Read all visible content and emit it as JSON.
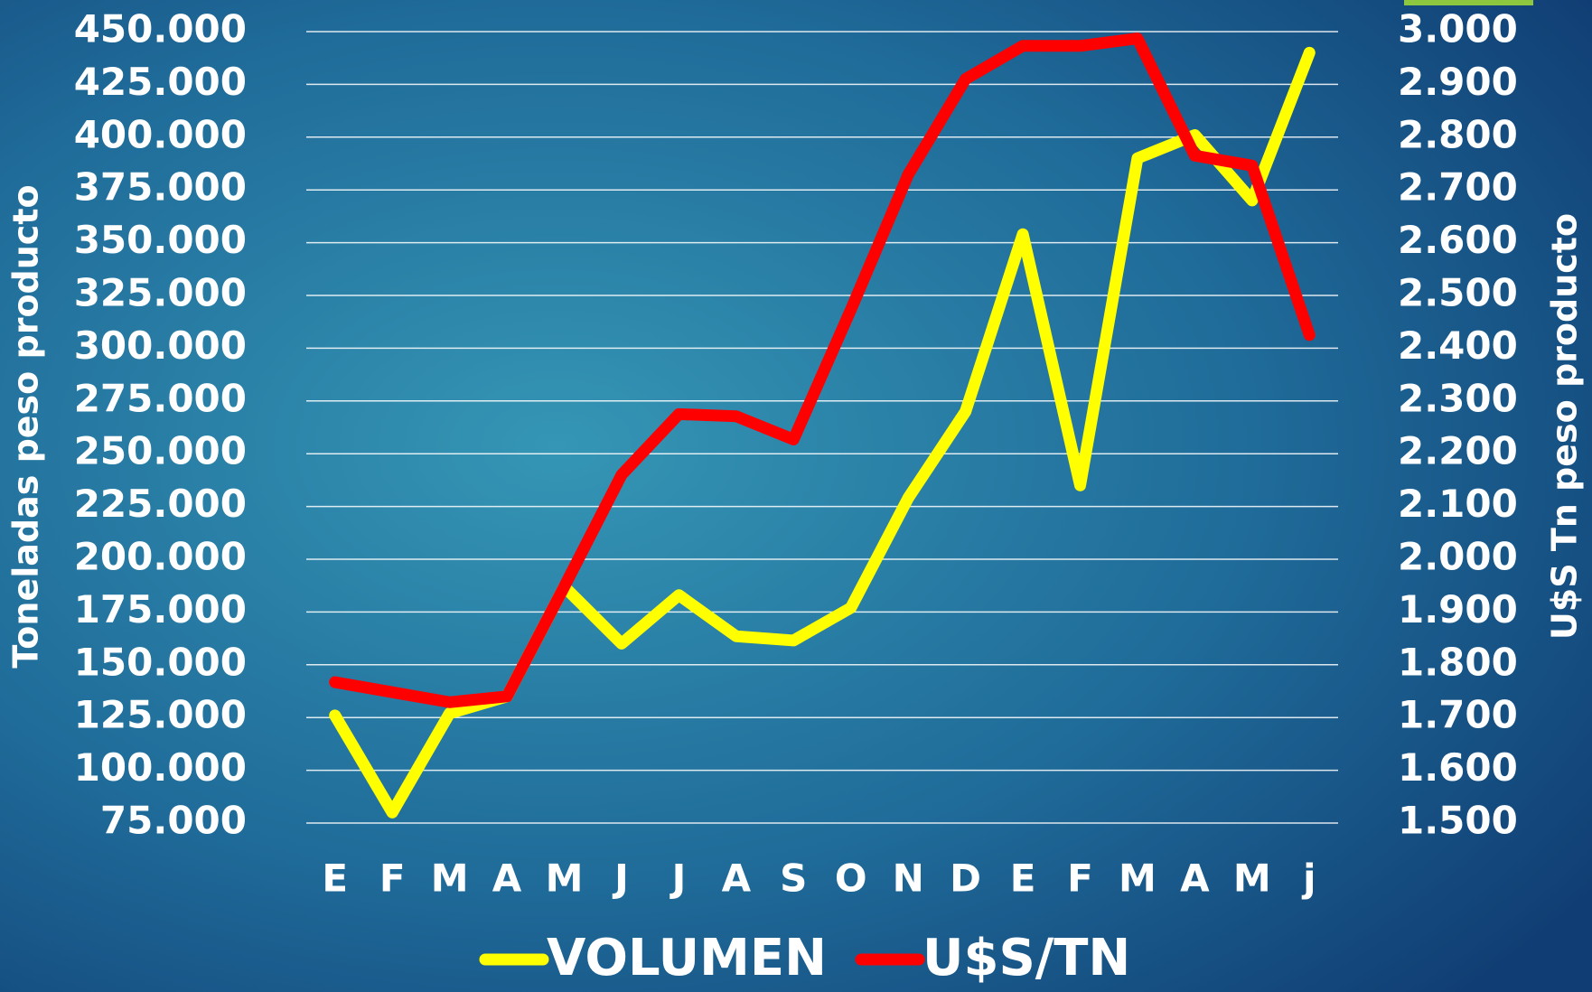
{
  "chart_data": {
    "type": "line",
    "categories": [
      "E",
      "F",
      "M",
      "A",
      "M",
      "J",
      "J",
      "A",
      "S",
      "O",
      "N",
      "D",
      "E",
      "F",
      "M",
      "A",
      "M",
      "j"
    ],
    "series": [
      {
        "name": "VOLUMEN",
        "color": "#ffff00",
        "axis": "y",
        "values": [
          126000,
          80000,
          127000,
          135000,
          187000,
          160000,
          183000,
          163500,
          161500,
          177000,
          229000,
          270000,
          354000,
          235000,
          390000,
          401000,
          370000,
          440000
        ]
      },
      {
        "name": "U$S/TN",
        "color": "#ff0000",
        "axis": "y2",
        "values": [
          1767,
          1748,
          1729,
          1740,
          1948,
          2160,
          2275,
          2271,
          2227,
          2473,
          2729,
          2910,
          2973,
          2973,
          2987,
          2765,
          2746,
          2425
        ]
      }
    ],
    "y_label": "Toneladas peso producto",
    "y2_label": "U$S Tn peso producto",
    "ylim": [
      75000,
      450000
    ],
    "yticks": [
      {
        "value": 75000,
        "label": "75.000"
      },
      {
        "value": 100000,
        "label": "100.000"
      },
      {
        "value": 125000,
        "label": "125.000"
      },
      {
        "value": 150000,
        "label": "150.000"
      },
      {
        "value": 175000,
        "label": "175.000"
      },
      {
        "value": 200000,
        "label": "200.000"
      },
      {
        "value": 225000,
        "label": "225.000"
      },
      {
        "value": 250000,
        "label": "250.000"
      },
      {
        "value": 275000,
        "label": "275.000"
      },
      {
        "value": 300000,
        "label": "300.000"
      },
      {
        "value": 325000,
        "label": "325.000"
      },
      {
        "value": 350000,
        "label": "350.000"
      },
      {
        "value": 375000,
        "label": "375.000"
      },
      {
        "value": 400000,
        "label": "400.000"
      },
      {
        "value": 425000,
        "label": "425.000"
      },
      {
        "value": 450000,
        "label": "450.000"
      }
    ],
    "y2lim": [
      1500,
      3000
    ],
    "y2ticks": [
      {
        "value": 1500,
        "label": "1.500"
      },
      {
        "value": 1600,
        "label": "1.600"
      },
      {
        "value": 1700,
        "label": "1.700"
      },
      {
        "value": 1800,
        "label": "1.800"
      },
      {
        "value": 1900,
        "label": "1.900"
      },
      {
        "value": 2000,
        "label": "2.000"
      },
      {
        "value": 2100,
        "label": "2.100"
      },
      {
        "value": 2200,
        "label": "2.200"
      },
      {
        "value": 2300,
        "label": "2.300"
      },
      {
        "value": 2400,
        "label": "2.400"
      },
      {
        "value": 2500,
        "label": "2.500"
      },
      {
        "value": 2600,
        "label": "2.600"
      },
      {
        "value": 2700,
        "label": "2.700"
      },
      {
        "value": 2800,
        "label": "2.800"
      },
      {
        "value": 2900,
        "label": "2.900"
      },
      {
        "value": 3000,
        "label": "3.000"
      }
    ],
    "grid": true,
    "legend": "bottom"
  }
}
